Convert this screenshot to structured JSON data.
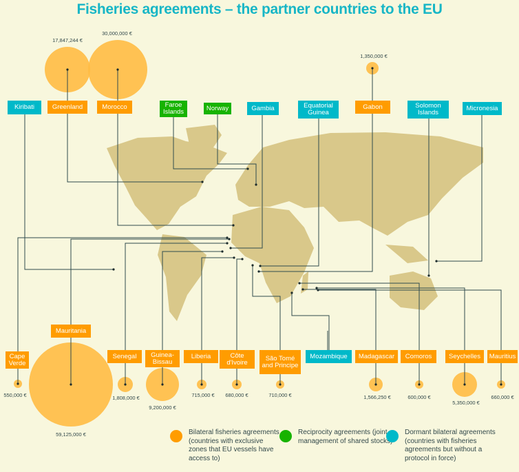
{
  "title": "Fisheries agreements – the partner countries to the EU",
  "colors": {
    "bilateral": "#ff9c00",
    "reciprocity": "#17b300",
    "dormant": "#00b9c9",
    "bubble": "#ffbb44",
    "map": "#d9c88a",
    "line": "#2f4b4d",
    "title": "#17b6c6"
  },
  "countries": [
    {
      "name": "Kiribati",
      "type": "dormant"
    },
    {
      "name": "Greenland",
      "type": "bilateral",
      "amount": "17,847,244 €",
      "value": 17847244
    },
    {
      "name": "Morocco",
      "type": "bilateral",
      "amount": "30,000,000 €",
      "value": 30000000
    },
    {
      "name": "Faroe Islands",
      "type": "reciprocity"
    },
    {
      "name": "Norway",
      "type": "reciprocity"
    },
    {
      "name": "Gambia",
      "type": "dormant"
    },
    {
      "name": "Equatorial Guinea",
      "type": "dormant"
    },
    {
      "name": "Gabon",
      "type": "bilateral",
      "amount": "1,350,000 €",
      "value": 1350000
    },
    {
      "name": "Solomon Islands",
      "type": "dormant"
    },
    {
      "name": "Micronesia",
      "type": "dormant"
    },
    {
      "name": "Cape Verde",
      "type": "bilateral",
      "amount": "550,000 €",
      "value": 550000
    },
    {
      "name": "Mauritania",
      "type": "bilateral",
      "amount": "59,125,000 €",
      "value": 59125000
    },
    {
      "name": "Senegal",
      "type": "bilateral",
      "amount": "1,808,000 €",
      "value": 1808000
    },
    {
      "name": "Guinea-Bissau",
      "type": "bilateral",
      "amount": "9,200,000 €",
      "value": 9200000
    },
    {
      "name": "Liberia",
      "type": "bilateral",
      "amount": "715,000 €",
      "value": 715000
    },
    {
      "name": "Côte d'Ivoire",
      "type": "bilateral",
      "amount": "680,000 €",
      "value": 680000
    },
    {
      "name": "São Tomé and Principe",
      "type": "bilateral",
      "amount": "710,000 €",
      "value": 710000
    },
    {
      "name": "Mozambique",
      "type": "dormant"
    },
    {
      "name": "Madagascar",
      "type": "bilateral",
      "amount": "1,566,250 €",
      "value": 1566250
    },
    {
      "name": "Comoros",
      "type": "bilateral",
      "amount": "600,000 €",
      "value": 600000
    },
    {
      "name": "Seychelles",
      "type": "bilateral",
      "amount": "5,350,000 €",
      "value": 5350000
    },
    {
      "name": "Mauritius",
      "type": "bilateral",
      "amount": "660,000 €",
      "value": 660000
    }
  ],
  "legend": [
    {
      "type": "bilateral",
      "text": "Bilateral fisheries agreements (countries with exclusive zones that EU vessels have access to)"
    },
    {
      "type": "reciprocity",
      "text": "Reciprocity agreements (joint management of shared stocks)"
    },
    {
      "type": "dormant",
      "text": "Dormant bilateral agreements (countries with fisheries agreements but without a protocol in force)"
    }
  ]
}
